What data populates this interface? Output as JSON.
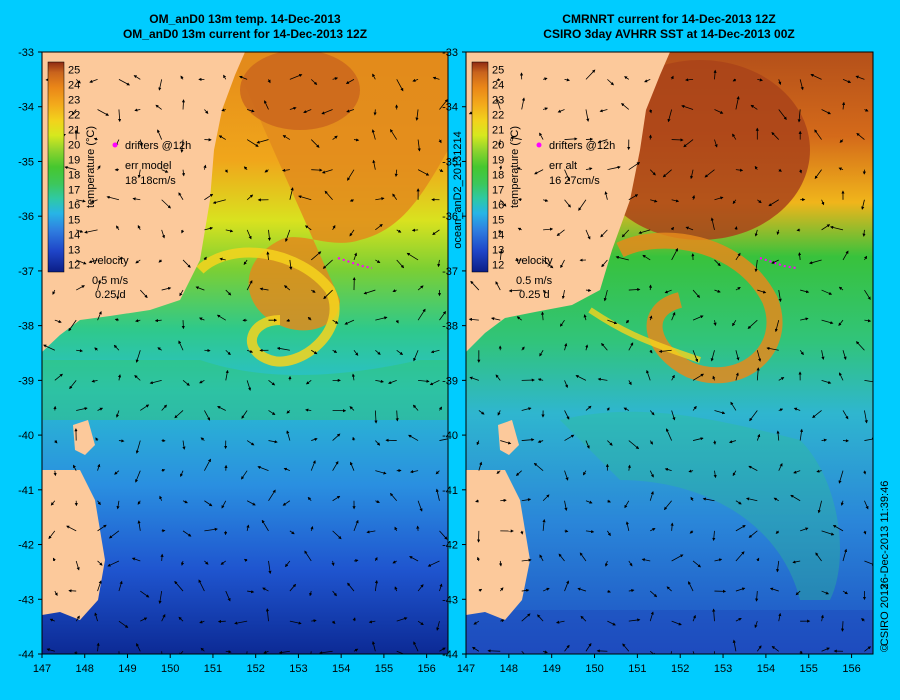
{
  "figure": {
    "side_text": "ocean_anD2_20131214",
    "credit": "CSIRO 2013",
    "timestamp": "26-Dec-2013 11:39:46",
    "copyright_symbol": "©"
  },
  "chart_data": [
    {
      "type": "heatmap",
      "title_line1": "OM_anD0 13m temp. 14-Dec-2013",
      "title_line2": "OM_anD0 13m current for 14-Dec-2013 12Z",
      "x_ticks": [
        "147",
        "148",
        "149",
        "150",
        "151",
        "152",
        "153",
        "154",
        "155",
        "156"
      ],
      "y_ticks": [
        "-33",
        "-34",
        "-35",
        "-36",
        "-37",
        "-38",
        "-39",
        "-40",
        "-41",
        "-42",
        "-43",
        "-44"
      ],
      "xlim": [
        147,
        156.5
      ],
      "ylim": [
        -44,
        -33
      ],
      "colorbar": {
        "label": "temperature (°C)",
        "min": 12,
        "max": 25,
        "ticks": [
          "25",
          "24",
          "23",
          "22",
          "21",
          "20",
          "19",
          "18",
          "17",
          "16",
          "15",
          "14",
          "13",
          "12"
        ]
      },
      "legend_drifters": "drifters @12h",
      "err_label": "err model",
      "err_value": "18 18cm/s",
      "velocity_label": "velocity",
      "velocity_scale": "0.5 m/s",
      "velocity_time": "0.25 d"
    },
    {
      "type": "heatmap",
      "title_line1": "CMRNRT current for 14-Dec-2013 12Z",
      "title_line2": "CSIRO 3day AVHRR SST at 14-Dec-2013 00Z",
      "x_ticks": [
        "147",
        "148",
        "149",
        "150",
        "151",
        "152",
        "153",
        "154",
        "155",
        "156"
      ],
      "y_ticks": [
        "-33",
        "-34",
        "-35",
        "-36",
        "-37",
        "-38",
        "-39",
        "-40",
        "-41",
        "-42",
        "-43",
        "-44"
      ],
      "xlim": [
        147,
        156.5
      ],
      "ylim": [
        -44,
        -33
      ],
      "colorbar": {
        "label": "temperature (°C)",
        "min": 12,
        "max": 25,
        "ticks": [
          "25",
          "24",
          "23",
          "22",
          "21",
          "20",
          "19",
          "18",
          "17",
          "16",
          "15",
          "14",
          "13",
          "12"
        ]
      },
      "legend_drifters": "drifters @12h",
      "err_label": "err alt",
      "err_value": "16 27cm/s",
      "velocity_label": "velocity",
      "velocity_scale": "0.5 m/s",
      "velocity_time": "0.25 d"
    }
  ],
  "colors": {
    "background": "#00ccff",
    "land": "#fcc99b",
    "drifter": "#ff00ff",
    "colormap": [
      "#0b1e86",
      "#1f45c8",
      "#2f7fe0",
      "#27b5e6",
      "#2fc9a3",
      "#3dc75b",
      "#46c72f",
      "#8fd42e",
      "#d6e81e",
      "#f2d31c",
      "#f3a91b",
      "#ea8618",
      "#c9641d",
      "#8f2a12"
    ]
  }
}
